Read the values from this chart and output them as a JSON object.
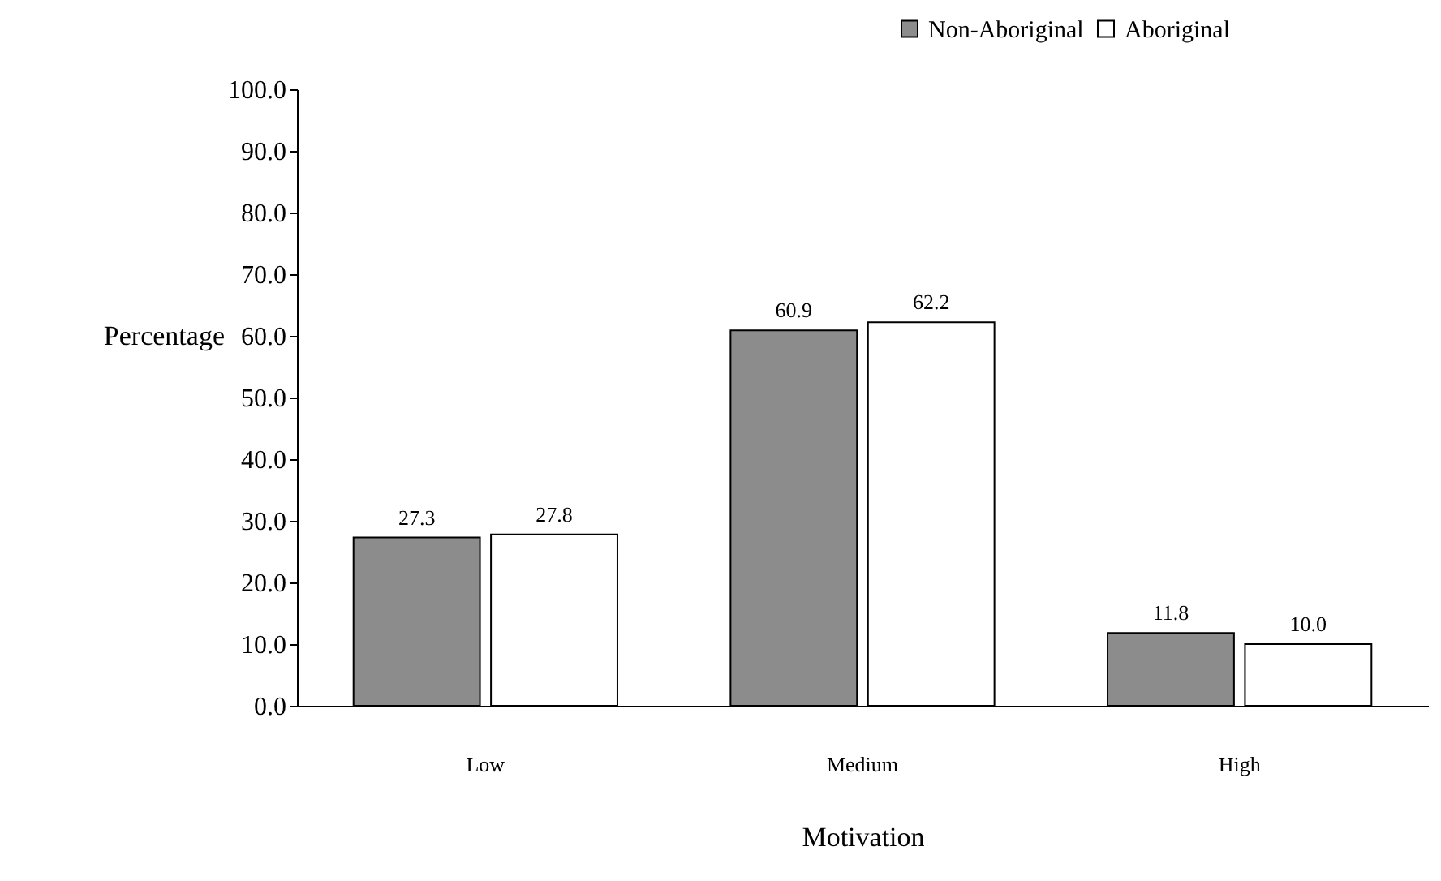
{
  "chart_data": {
    "type": "bar",
    "xlabel": "Motivation",
    "ylabel": "Percentage",
    "categories": [
      "Low",
      "Medium",
      "High"
    ],
    "series": [
      {
        "name": "Non-Aboriginal",
        "color": "#8c8c8c",
        "values": [
          27.3,
          60.9,
          11.8
        ],
        "value_labels": [
          "27.3",
          "60.9",
          "11.8"
        ]
      },
      {
        "name": "Aboriginal",
        "color": "#ffffff",
        "values": [
          27.8,
          62.2,
          10.0
        ],
        "value_labels": [
          "27.8",
          "62.2",
          "10.0"
        ]
      }
    ],
    "ylim": [
      0,
      100
    ],
    "yticks": [
      {
        "value": 0,
        "label": "0.0"
      },
      {
        "value": 10,
        "label": "10.0"
      },
      {
        "value": 20,
        "label": "20.0"
      },
      {
        "value": 30,
        "label": "30.0"
      },
      {
        "value": 40,
        "label": "40.0"
      },
      {
        "value": 50,
        "label": "50.0"
      },
      {
        "value": 60,
        "label": "60.0"
      },
      {
        "value": 70,
        "label": "70.0"
      },
      {
        "value": 80,
        "label": "80.0"
      },
      {
        "value": 90,
        "label": "90.0"
      },
      {
        "value": 100,
        "label": "100.0"
      }
    ],
    "grid": false,
    "legend": "top right"
  }
}
